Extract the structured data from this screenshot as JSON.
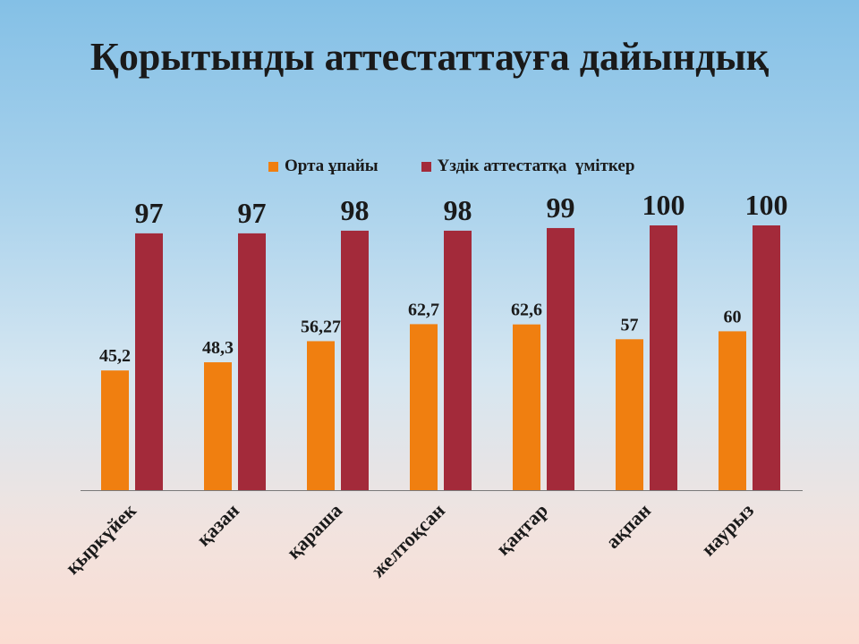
{
  "chart_data": {
    "type": "bar",
    "title": "Қорытынды аттестаттауға дайындық",
    "categories": [
      "қыркүйек",
      "қазан",
      "қараша",
      "желтоқсан",
      "қаңтар",
      "ақпан",
      "наурыз"
    ],
    "series": [
      {
        "name": "Орта ұпайы",
        "color": "#f07f10",
        "values": [
          45.2,
          48.3,
          56.27,
          62.7,
          62.6,
          57,
          60
        ],
        "labels": [
          "45,2",
          "48,3",
          "56,27",
          "62,7",
          "62,6",
          "57",
          "60"
        ]
      },
      {
        "name": "Үздік аттестатқа  үміткер",
        "color": "#a32a3a",
        "values": [
          97,
          97,
          98,
          98,
          99,
          100,
          100
        ],
        "labels": [
          "97",
          "97",
          "98",
          "98",
          "99",
          "100",
          "100"
        ]
      }
    ],
    "ylim": [
      0,
      100
    ],
    "grid": false,
    "legend_position": "top"
  }
}
